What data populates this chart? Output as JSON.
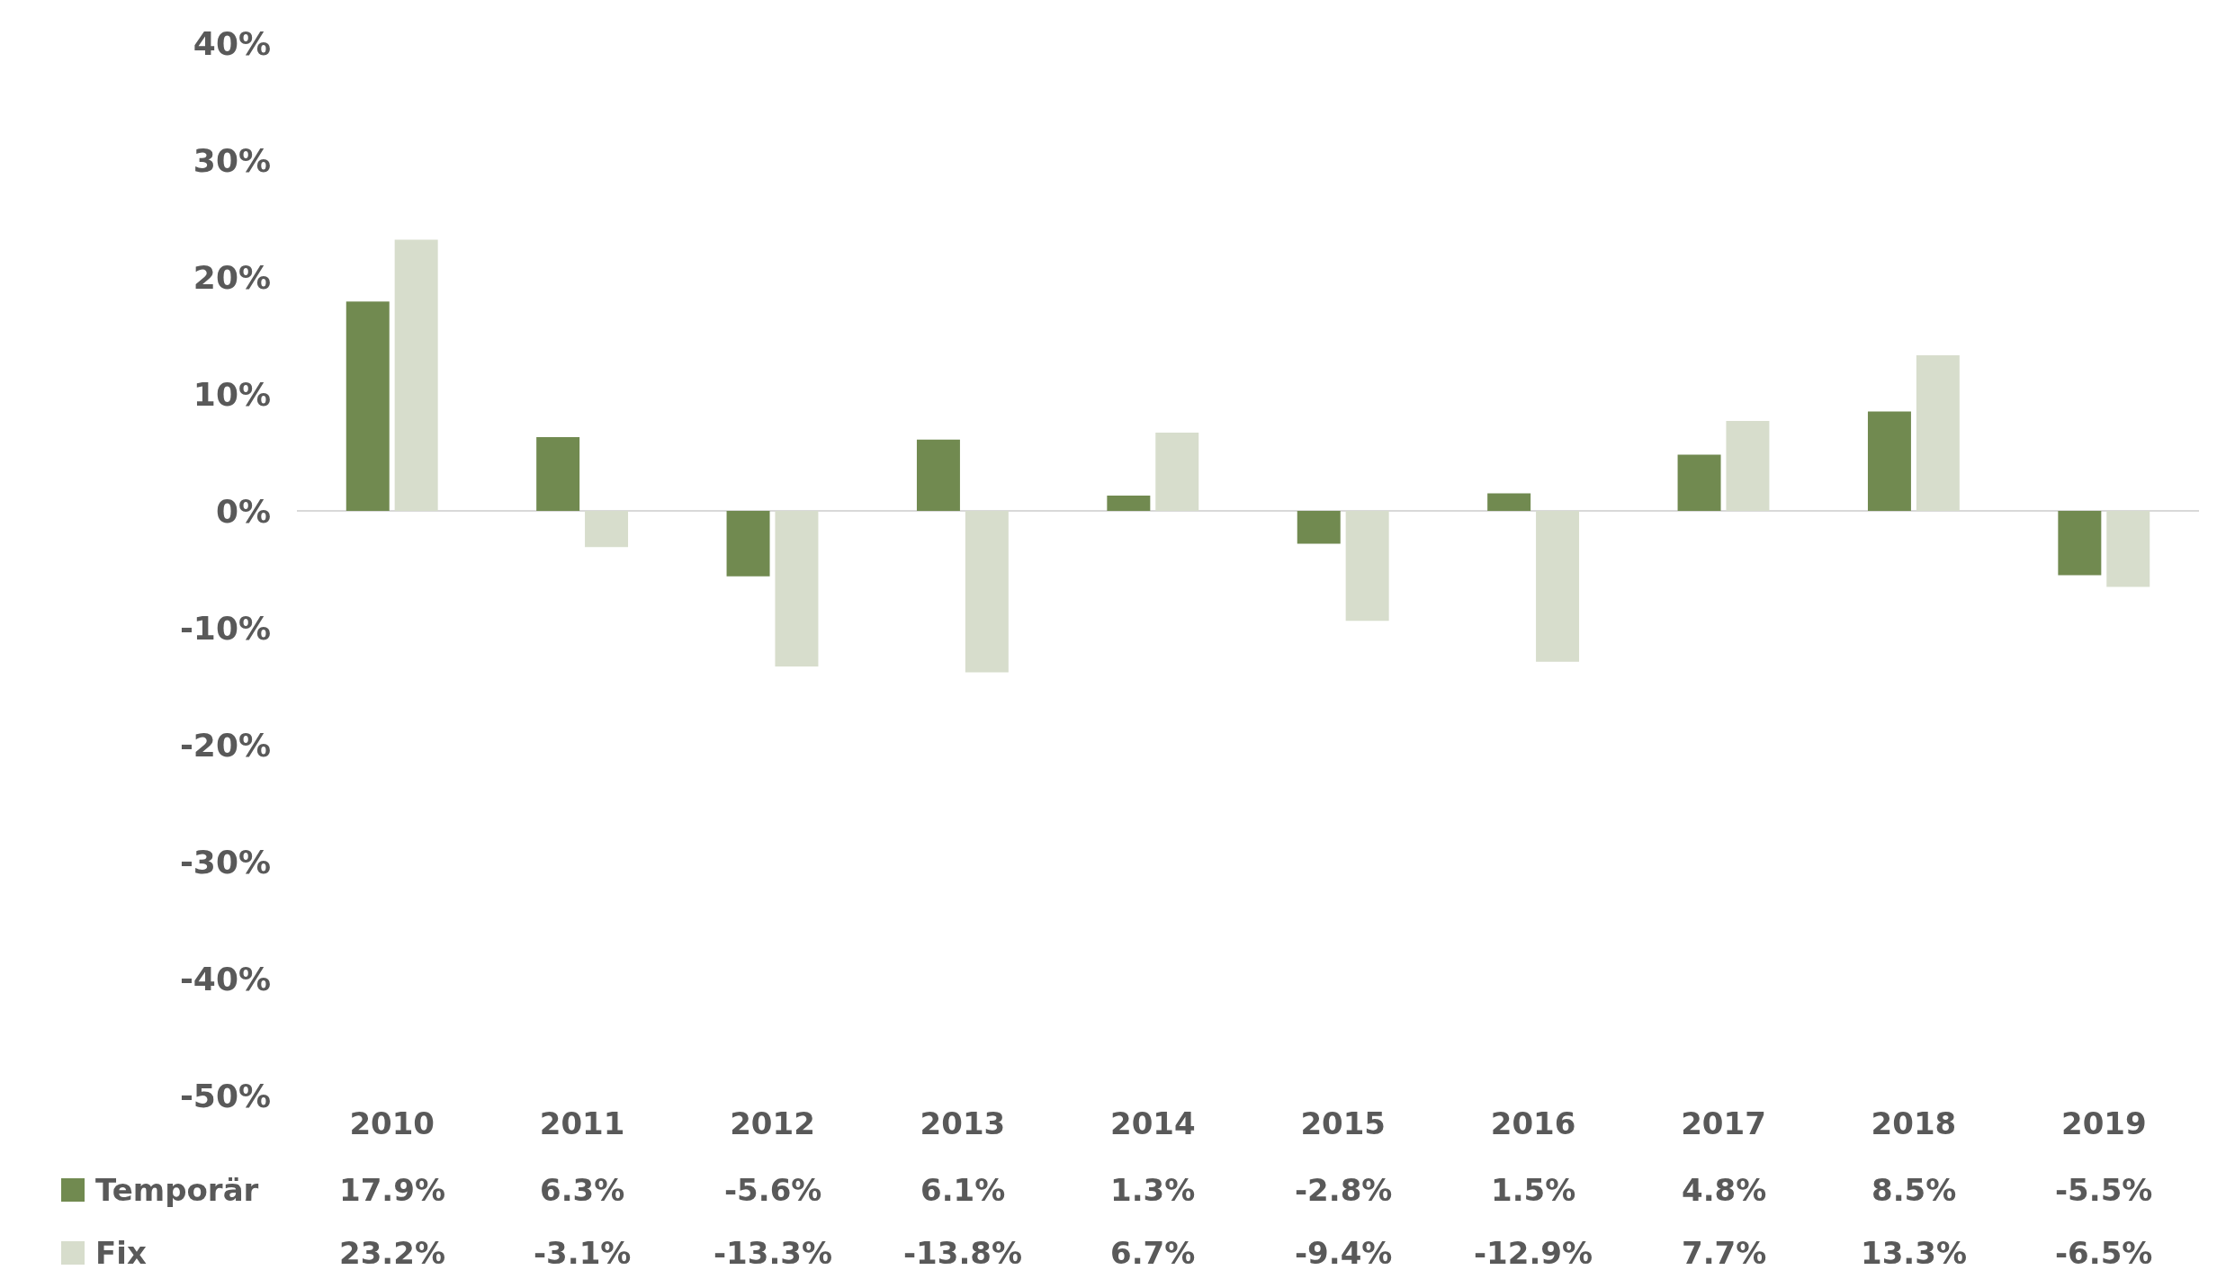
{
  "chart_data": {
    "type": "bar",
    "categories": [
      "2010",
      "2011",
      "2012",
      "2013",
      "2014",
      "2015",
      "2016",
      "2017",
      "2018",
      "2019"
    ],
    "series": [
      {
        "name": "Temporär",
        "color": "#718a50",
        "values": [
          17.9,
          6.3,
          -5.6,
          6.1,
          1.3,
          -2.8,
          1.5,
          4.8,
          8.5,
          -5.5
        ],
        "value_labels": [
          "17.9%",
          "6.3%",
          "-5.6%",
          "6.1%",
          "1.3%",
          "-2.8%",
          "1.5%",
          "4.8%",
          "8.5%",
          "-5.5%"
        ]
      },
      {
        "name": "Fix",
        "color": "#d7ddcc",
        "values": [
          23.2,
          -3.1,
          -13.3,
          -13.8,
          6.7,
          -9.4,
          -12.9,
          7.7,
          13.3,
          -6.5
        ],
        "value_labels": [
          "23.2%",
          "-3.1%",
          "-13.3%",
          "-13.8%",
          "6.7%",
          "-9.4%",
          "-12.9%",
          "7.7%",
          "13.3%",
          "-6.5%"
        ]
      }
    ],
    "ylim": [
      -50,
      40
    ],
    "yticks": [
      {
        "value": -50,
        "label": "-50%"
      },
      {
        "value": -40,
        "label": "-40%"
      },
      {
        "value": -30,
        "label": "-30%"
      },
      {
        "value": -20,
        "label": "-20%"
      },
      {
        "value": -10,
        "label": "-10%"
      },
      {
        "value": 0,
        "label": "0%"
      },
      {
        "value": 10,
        "label": "10%"
      },
      {
        "value": 20,
        "label": "20%"
      },
      {
        "value": 30,
        "label": "30%"
      },
      {
        "value": 40,
        "label": "40%"
      }
    ],
    "grid": false,
    "ref_lines": [
      {
        "axis": "y",
        "value": 0,
        "color": "#d9d9d9"
      }
    ],
    "legend": "bottom left"
  }
}
